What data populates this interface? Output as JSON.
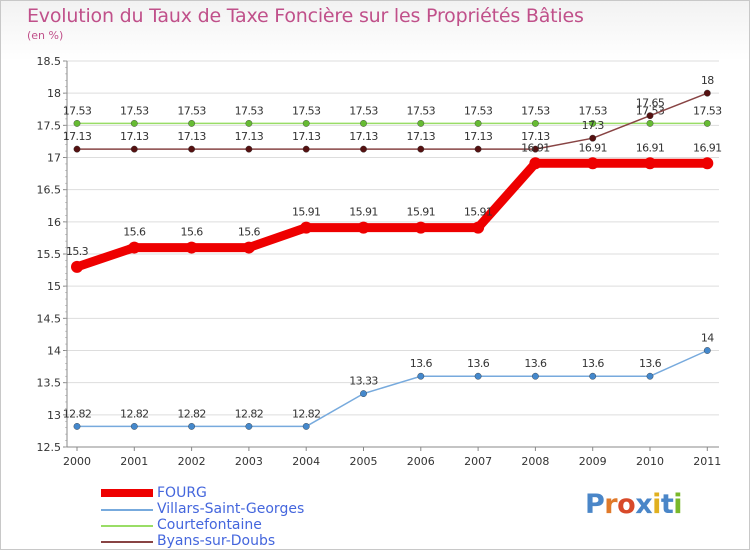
{
  "title": "Evolution du Taux de Taxe Foncière sur les Propriétés Bâties",
  "subtitle": "(en %)",
  "brand": {
    "text": "Proxiti",
    "letter_colors": [
      "#4a86c8",
      "#e07a2a",
      "#d84a2a",
      "#4a86c8",
      "#e0b020",
      "#4a86c8",
      "#7ab82a"
    ]
  },
  "chart_data": {
    "type": "line",
    "title": "Evolution du Taux de Taxe Foncière sur les Propriétés Bâties",
    "ylabel": "(en %)",
    "xlabel": "",
    "categories": [
      "2000",
      "2001",
      "2002",
      "2003",
      "2004",
      "2005",
      "2006",
      "2007",
      "2008",
      "2009",
      "2010",
      "2011"
    ],
    "ylim": [
      12.5,
      18.5
    ],
    "yticks": [
      "12.5",
      "13",
      "13.5",
      "14",
      "14.5",
      "15",
      "15.5",
      "16",
      "16.5",
      "17",
      "17.5",
      "18",
      "18.5"
    ],
    "grid": "horizontal",
    "series": [
      {
        "name": "Courtefontaine",
        "color": "#99dd66",
        "marker": "#66bb33",
        "values": [
          17.53,
          17.53,
          17.53,
          17.53,
          17.53,
          17.53,
          17.53,
          17.53,
          17.53,
          17.53,
          17.53,
          17.53
        ],
        "labels": [
          "17.53",
          "17.53",
          "17.53",
          "17.53",
          "17.53",
          "17.53",
          "17.53",
          "17.53",
          "17.53",
          "17.53",
          "17.53",
          "17.53"
        ]
      },
      {
        "name": "Byans-sur-Doubs",
        "color": "#884444",
        "marker": "#551111",
        "values": [
          17.13,
          17.13,
          17.13,
          17.13,
          17.13,
          17.13,
          17.13,
          17.13,
          17.13,
          17.3,
          17.65,
          18
        ],
        "labels": [
          "17.13",
          "17.13",
          "17.13",
          "17.13",
          "17.13",
          "17.13",
          "17.13",
          "17.13",
          "17.13",
          "17.3",
          "17.65",
          "18"
        ]
      },
      {
        "name": "Villars-Saint-Georges",
        "color": "#77aadd",
        "marker": "#4488cc",
        "values": [
          12.82,
          12.82,
          12.82,
          12.82,
          12.82,
          13.33,
          13.6,
          13.6,
          13.6,
          13.6,
          13.6,
          14
        ],
        "labels": [
          "12.82",
          "12.82",
          "12.82",
          "12.82",
          "12.82",
          "13.33",
          "13.6",
          "13.6",
          "13.6",
          "13.6",
          "13.6",
          "14"
        ]
      },
      {
        "name": "FOURG",
        "color": "#ee0000",
        "marker": "#ee0000",
        "values": [
          15.3,
          15.6,
          15.6,
          15.6,
          15.91,
          15.91,
          15.91,
          15.91,
          16.91,
          16.91,
          16.91,
          16.91
        ],
        "labels": [
          "15.3",
          "15.6",
          "15.6",
          "15.6",
          "15.91",
          "15.91",
          "15.91",
          "15.91",
          "16.91",
          "16.91",
          "16.91",
          "16.91"
        ]
      }
    ],
    "legend": [
      "FOURG",
      "Villars-Saint-Georges",
      "Courtefontaine",
      "Byans-sur-Doubs"
    ],
    "legend_position": "bottom-left"
  }
}
